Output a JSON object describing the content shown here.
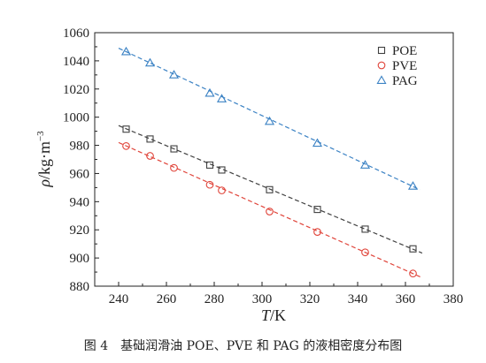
{
  "chart_data": {
    "type": "scatter",
    "xlabel": {
      "symbol": "T",
      "unit": "/K"
    },
    "ylabel": {
      "symbol": "ρ",
      "unit": "/kg·m",
      "exponent": "−3"
    },
    "xlim": [
      230,
      380
    ],
    "ylim": [
      880,
      1060
    ],
    "xticks": [
      240,
      260,
      280,
      300,
      320,
      340,
      360,
      380
    ],
    "yticks": [
      880,
      900,
      920,
      940,
      960,
      980,
      1000,
      1020,
      1040,
      1060
    ],
    "legend_position": "top-right",
    "series": [
      {
        "name": "POE",
        "marker": "square",
        "color": "#404040",
        "x": [
          243.15,
          253.15,
          263.15,
          278.15,
          283.15,
          303.15,
          323.15,
          343.15,
          363.15
        ],
        "y": [
          991.5,
          984.5,
          977.5,
          966.0,
          962.5,
          948.5,
          934.5,
          920.5,
          906.5
        ],
        "fit": {
          "x0": 240,
          "y0": 994,
          "x1": 367,
          "y1": 903.5
        }
      },
      {
        "name": "PVE",
        "marker": "circle",
        "color": "#e0443a",
        "x": [
          243.15,
          253.15,
          263.15,
          278.15,
          283.15,
          303.15,
          323.15,
          343.15,
          363.15
        ],
        "y": [
          979.5,
          972.5,
          964.0,
          952.0,
          948.0,
          933.0,
          918.5,
          904.0,
          889.0
        ],
        "fit": {
          "x0": 240,
          "y0": 982,
          "x1": 367,
          "y1": 886
        }
      },
      {
        "name": "PAG",
        "marker": "triangle",
        "color": "#3b82c4",
        "x": [
          243.15,
          253.15,
          263.15,
          278.15,
          283.15,
          303.15,
          323.15,
          343.15,
          363.15
        ],
        "y": [
          1046.5,
          1038.5,
          1030.0,
          1017.0,
          1013.0,
          997.0,
          981.5,
          966.0,
          951.0
        ],
        "fit": {
          "x0": 240,
          "y0": 1049,
          "x1": 366,
          "y1": 948.5
        }
      }
    ]
  },
  "caption": {
    "number": "图 4",
    "text": "基础润滑油 POE、PVE 和 PAG 的液相密度分布图"
  }
}
